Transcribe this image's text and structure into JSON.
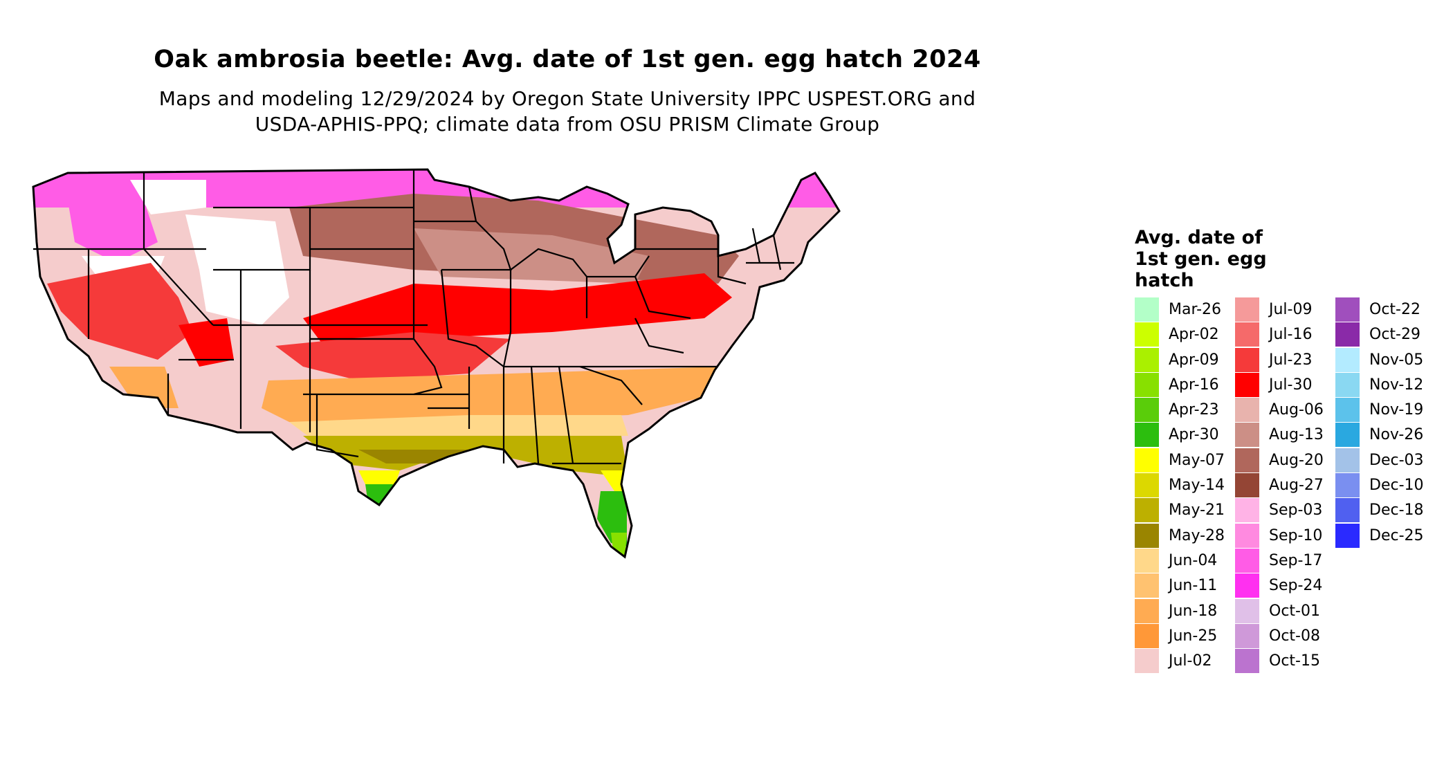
{
  "title": "Oak ambrosia beetle: Avg. date of 1st gen. egg hatch 2024",
  "subtitle_line1": "Maps and modeling 12/29/2024 by Oregon State University IPPC USPEST.ORG and",
  "subtitle_line2": "USDA-APHIS-PPQ; climate data from OSU PRISM Climate Group",
  "legend": {
    "title_lines": [
      "Avg. date of",
      "1st gen. egg",
      "hatch"
    ],
    "columns": [
      [
        {
          "label": "Mar-26",
          "color": "#b3ffc8"
        },
        {
          "label": "Apr-02",
          "color": "#ccff00"
        },
        {
          "label": "Apr-09",
          "color": "#aaf000"
        },
        {
          "label": "Apr-16",
          "color": "#88e000"
        },
        {
          "label": "Apr-23",
          "color": "#5acd0a"
        },
        {
          "label": "Apr-30",
          "color": "#2cbe0e"
        },
        {
          "label": "May-07",
          "color": "#ffff00"
        },
        {
          "label": "May-14",
          "color": "#dcd800"
        },
        {
          "label": "May-21",
          "color": "#bdb000"
        },
        {
          "label": "May-28",
          "color": "#9a8500"
        },
        {
          "label": "Jun-04",
          "color": "#ffd88a"
        },
        {
          "label": "Jun-11",
          "color": "#ffc270"
        },
        {
          "label": "Jun-18",
          "color": "#ffab52"
        },
        {
          "label": "Jun-25",
          "color": "#ff9838"
        },
        {
          "label": "Jul-02",
          "color": "#f5cccc"
        }
      ],
      [
        {
          "label": "Jul-09",
          "color": "#f59a9a"
        },
        {
          "label": "Jul-16",
          "color": "#f56a6a"
        },
        {
          "label": "Jul-23",
          "color": "#f53a3a"
        },
        {
          "label": "Jul-30",
          "color": "#ff0000"
        },
        {
          "label": "Aug-06",
          "color": "#e8b3ad"
        },
        {
          "label": "Aug-13",
          "color": "#cc8f86"
        },
        {
          "label": "Aug-20",
          "color": "#b0675c"
        },
        {
          "label": "Aug-27",
          "color": "#944535"
        },
        {
          "label": "Sep-03",
          "color": "#ffb3e6"
        },
        {
          "label": "Sep-10",
          "color": "#ff8ae0"
        },
        {
          "label": "Sep-17",
          "color": "#ff5ce6"
        },
        {
          "label": "Sep-24",
          "color": "#ff30f0"
        },
        {
          "label": "Oct-01",
          "color": "#e0c0e8"
        },
        {
          "label": "Oct-08",
          "color": "#cf99d9"
        },
        {
          "label": "Oct-15",
          "color": "#bb73cf"
        }
      ],
      [
        {
          "label": "Oct-22",
          "color": "#a04fbd"
        },
        {
          "label": "Oct-29",
          "color": "#8a2aa8"
        },
        {
          "label": "Nov-05",
          "color": "#b3ebff"
        },
        {
          "label": "Nov-12",
          "color": "#8ad8f2"
        },
        {
          "label": "Nov-19",
          "color": "#5cc2eb"
        },
        {
          "label": "Nov-26",
          "color": "#2aa8e0"
        },
        {
          "label": "Dec-03",
          "color": "#a3c2e8"
        },
        {
          "label": "Dec-10",
          "color": "#7a8ff0"
        },
        {
          "label": "Dec-18",
          "color": "#5060f0"
        },
        {
          "label": "Dec-25",
          "color": "#2a2aff"
        }
      ]
    ]
  }
}
